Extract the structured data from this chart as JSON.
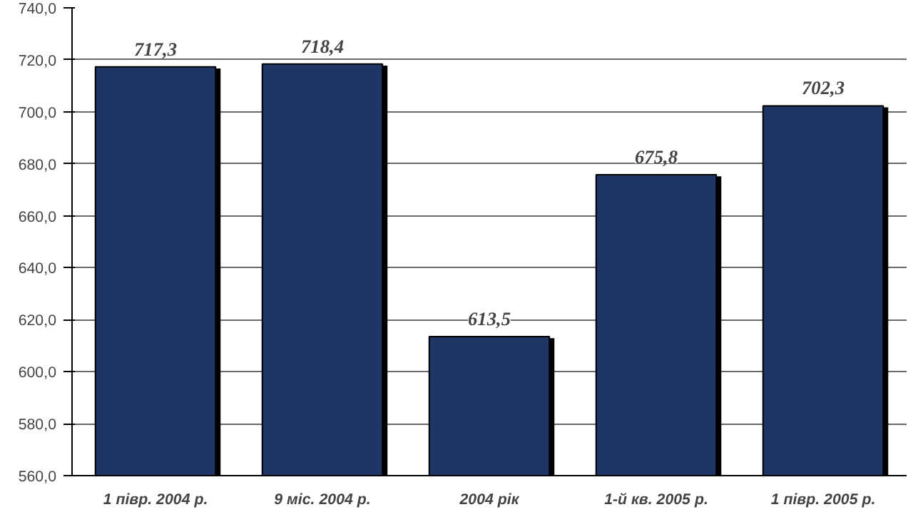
{
  "chart_data": {
    "type": "bar",
    "categories": [
      "1 півр. 2004 р.",
      "9 міс. 2004 р.",
      "2004 рік",
      "1-й кв. 2005 р.",
      "1 півр. 2005 р."
    ],
    "values": [
      717.3,
      718.4,
      613.5,
      675.8,
      702.3
    ],
    "color": "#1f3566",
    "value_labels": [
      "717,3",
      "718,4",
      "613,5",
      "675,8",
      "702,3"
    ],
    "ylim": [
      560,
      740
    ],
    "yticks": [
      {
        "value": 560,
        "label": "560,0"
      },
      {
        "value": 580,
        "label": "580,0"
      },
      {
        "value": 600,
        "label": "600,0"
      },
      {
        "value": 620,
        "label": "620,0"
      },
      {
        "value": 640,
        "label": "640,0"
      },
      {
        "value": 660,
        "label": "660,0"
      },
      {
        "value": 680,
        "label": "680,0"
      },
      {
        "value": 700,
        "label": "700,0"
      },
      {
        "value": 720,
        "label": "720,0"
      },
      {
        "value": 740,
        "label": "740,0"
      }
    ],
    "grid": "y"
  }
}
